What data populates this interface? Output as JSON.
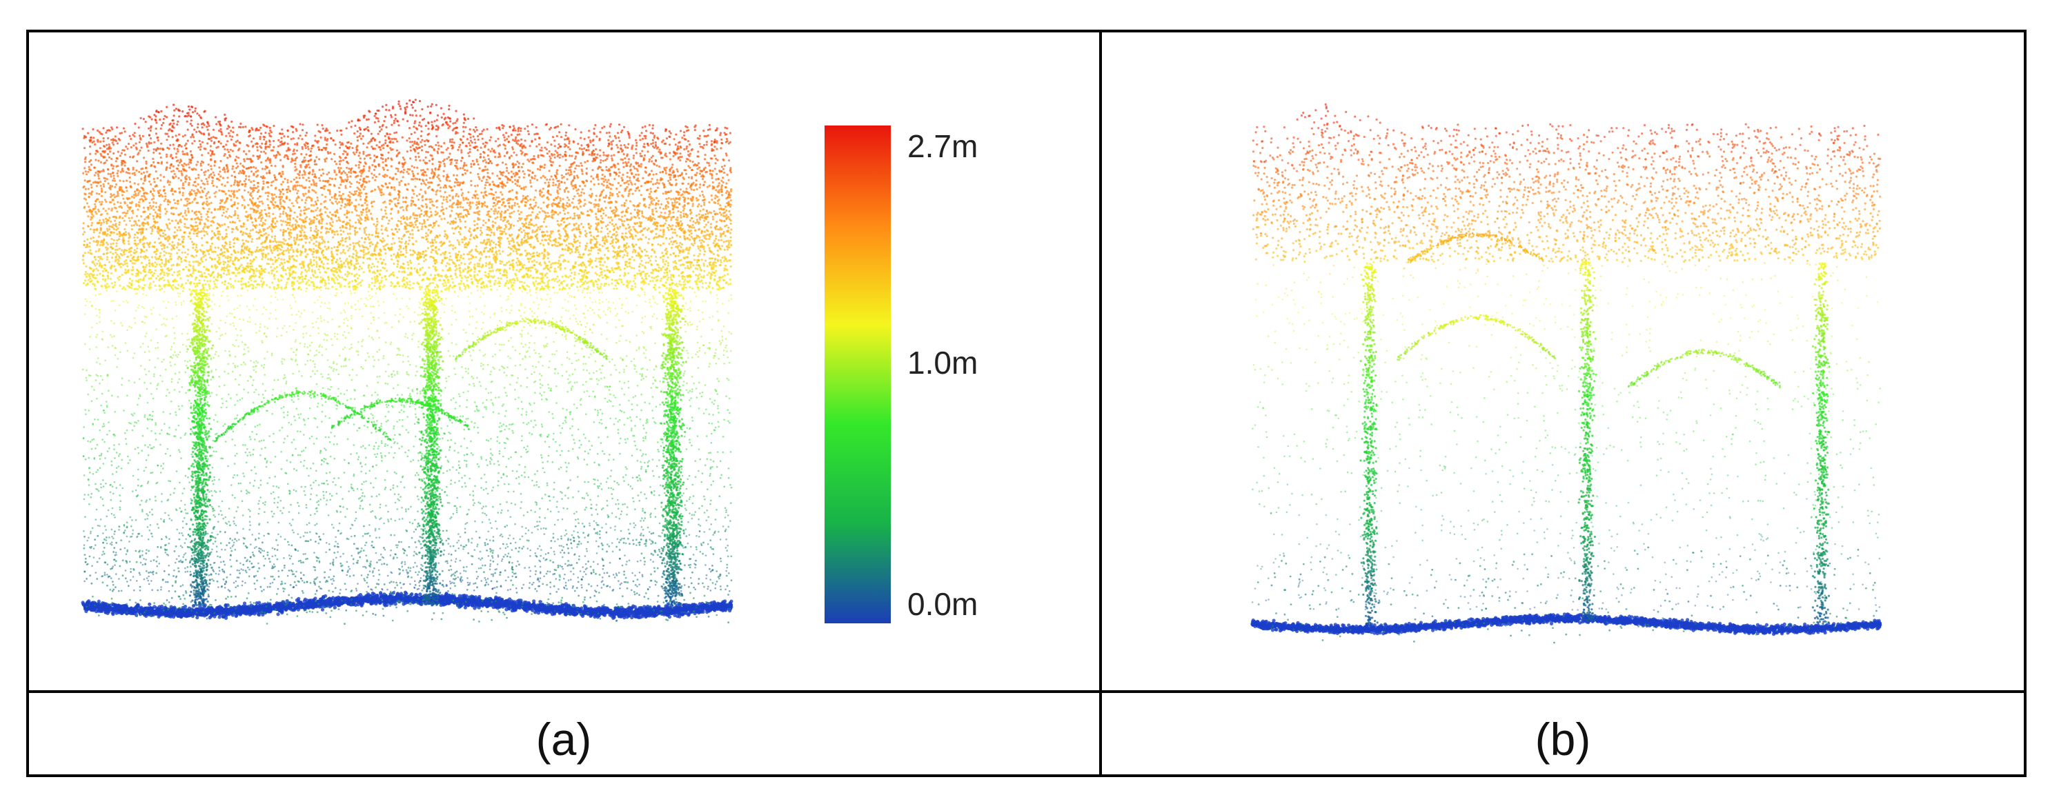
{
  "panels": [
    {
      "caption": "(a)",
      "cloud": "dense point cloud"
    },
    {
      "caption": "(b)",
      "cloud": "sparse point cloud"
    }
  ],
  "colorbar": {
    "stops": [
      "#1a3fb5",
      "#18b24a",
      "#34e82a",
      "#f5f51e",
      "#ff8a14",
      "#e8160c"
    ],
    "labels": {
      "top": "2.7m",
      "mid": "1.0m",
      "bottom": "0.0m"
    }
  },
  "colors": {
    "ground": "#1a3fc9",
    "trunk": "#2f9f6a",
    "border": "#000000"
  }
}
